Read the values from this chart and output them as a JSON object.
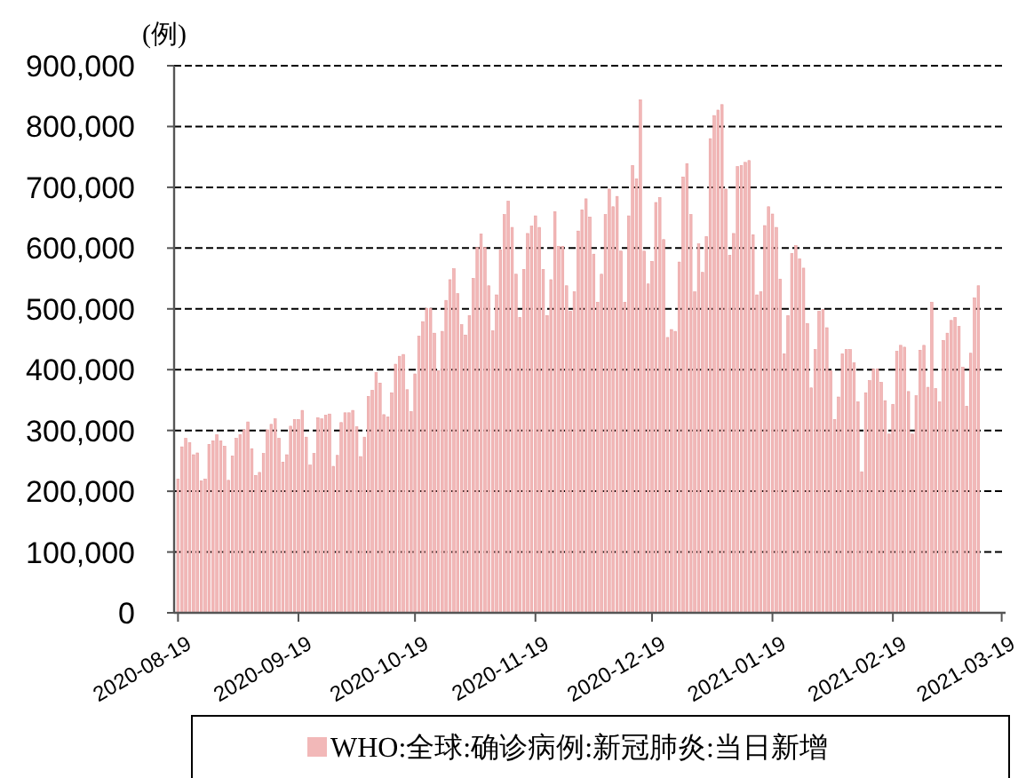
{
  "chart_data": {
    "type": "bar",
    "ylabel": "(例)",
    "x": [
      "2020-08-19",
      "2020-08-20",
      "2020-08-21",
      "2020-08-22",
      "2020-08-23",
      "2020-08-24",
      "2020-08-25",
      "2020-08-26",
      "2020-08-27",
      "2020-08-28",
      "2020-08-29",
      "2020-08-30",
      "2020-08-31",
      "2020-09-01",
      "2020-09-02",
      "2020-09-03",
      "2020-09-04",
      "2020-09-05",
      "2020-09-06",
      "2020-09-07",
      "2020-09-08",
      "2020-09-09",
      "2020-09-10",
      "2020-09-11",
      "2020-09-12",
      "2020-09-13",
      "2020-09-14",
      "2020-09-15",
      "2020-09-16",
      "2020-09-17",
      "2020-09-18",
      "2020-09-19",
      "2020-09-20",
      "2020-09-21",
      "2020-09-22",
      "2020-09-23",
      "2020-09-24",
      "2020-09-25",
      "2020-09-26",
      "2020-09-27",
      "2020-09-28",
      "2020-09-29",
      "2020-09-30",
      "2020-10-01",
      "2020-10-02",
      "2020-10-03",
      "2020-10-04",
      "2020-10-05",
      "2020-10-06",
      "2020-10-07",
      "2020-10-08",
      "2020-10-09",
      "2020-10-10",
      "2020-10-11",
      "2020-10-12",
      "2020-10-13",
      "2020-10-14",
      "2020-10-15",
      "2020-10-16",
      "2020-10-17",
      "2020-10-18",
      "2020-10-19",
      "2020-10-20",
      "2020-10-21",
      "2020-10-22",
      "2020-10-23",
      "2020-10-24",
      "2020-10-25",
      "2020-10-26",
      "2020-10-27",
      "2020-10-28",
      "2020-10-29",
      "2020-10-30",
      "2020-10-31",
      "2020-11-01",
      "2020-11-02",
      "2020-11-03",
      "2020-11-04",
      "2020-11-05",
      "2020-11-06",
      "2020-11-07",
      "2020-11-08",
      "2020-11-09",
      "2020-11-10",
      "2020-11-11",
      "2020-11-12",
      "2020-11-13",
      "2020-11-14",
      "2020-11-15",
      "2020-11-16",
      "2020-11-17",
      "2020-11-18",
      "2020-11-19",
      "2020-11-20",
      "2020-11-21",
      "2020-11-22",
      "2020-11-23",
      "2020-11-24",
      "2020-11-25",
      "2020-11-26",
      "2020-11-27",
      "2020-11-28",
      "2020-11-29",
      "2020-11-30",
      "2020-12-01",
      "2020-12-02",
      "2020-12-03",
      "2020-12-04",
      "2020-12-05",
      "2020-12-06",
      "2020-12-07",
      "2020-12-08",
      "2020-12-09",
      "2020-12-10",
      "2020-12-11",
      "2020-12-12",
      "2020-12-13",
      "2020-12-14",
      "2020-12-15",
      "2020-12-16",
      "2020-12-17",
      "2020-12-18",
      "2020-12-19",
      "2020-12-20",
      "2020-12-21",
      "2020-12-22",
      "2020-12-23",
      "2020-12-24",
      "2020-12-25",
      "2020-12-26",
      "2020-12-27",
      "2020-12-28",
      "2020-12-29",
      "2020-12-30",
      "2020-12-31",
      "2021-01-01",
      "2021-01-02",
      "2021-01-03",
      "2021-01-04",
      "2021-01-05",
      "2021-01-06",
      "2021-01-07",
      "2021-01-08",
      "2021-01-09",
      "2021-01-10",
      "2021-01-11",
      "2021-01-12",
      "2021-01-13",
      "2021-01-14",
      "2021-01-15",
      "2021-01-16",
      "2021-01-17",
      "2021-01-18",
      "2021-01-19",
      "2021-01-20",
      "2021-01-21",
      "2021-01-22",
      "2021-01-23",
      "2021-01-24",
      "2021-01-25",
      "2021-01-26",
      "2021-01-27",
      "2021-01-28",
      "2021-01-29",
      "2021-01-30",
      "2021-01-31",
      "2021-02-01",
      "2021-02-02",
      "2021-02-03",
      "2021-02-04",
      "2021-02-05",
      "2021-02-06",
      "2021-02-07",
      "2021-02-08",
      "2021-02-09",
      "2021-02-10",
      "2021-02-11",
      "2021-02-12",
      "2021-02-13",
      "2021-02-14",
      "2021-02-15",
      "2021-02-16",
      "2021-02-17",
      "2021-02-18",
      "2021-02-19",
      "2021-02-20",
      "2021-02-21",
      "2021-02-22",
      "2021-02-23",
      "2021-02-24",
      "2021-02-25",
      "2021-02-26",
      "2021-02-27",
      "2021-02-28",
      "2021-03-01",
      "2021-03-02",
      "2021-03-03",
      "2021-03-04",
      "2021-03-05",
      "2021-03-06",
      "2021-03-07",
      "2021-03-08",
      "2021-03-09",
      "2021-03-10",
      "2021-03-11",
      "2021-03-12",
      "2021-03-13"
    ],
    "series": [
      {
        "name": "WHO:全球:确诊病例:新冠肺炎:当日新增",
        "color": "#f2b8b8",
        "values": [
          220000,
          273000,
          287000,
          280000,
          260000,
          263000,
          217000,
          220000,
          277000,
          283000,
          293000,
          283000,
          274000,
          218000,
          258000,
          287000,
          293000,
          301000,
          314000,
          270000,
          226000,
          231000,
          262000,
          301000,
          310000,
          319000,
          287000,
          248000,
          260000,
          307000,
          318000,
          318000,
          333000,
          289000,
          243000,
          262000,
          321000,
          319000,
          325000,
          327000,
          241000,
          259000,
          313000,
          329000,
          329000,
          333000,
          306000,
          257000,
          289000,
          356000,
          366000,
          395000,
          378000,
          326000,
          322000,
          362000,
          409000,
          422000,
          425000,
          367000,
          331000,
          393000,
          455000,
          479000,
          501000,
          501000,
          460000,
          398000,
          463000,
          514000,
          548000,
          566000,
          525000,
          474000,
          457000,
          489000,
          550000,
          601000,
          623000,
          601000,
          538000,
          464000,
          523000,
          597000,
          655000,
          677000,
          634000,
          557000,
          486000,
          565000,
          624000,
          636000,
          653000,
          634000,
          565000,
          489000,
          548000,
          660000,
          603000,
          603000,
          538000,
          496000,
          528000,
          628000,
          663000,
          681000,
          651000,
          590000,
          511000,
          557000,
          655000,
          697000,
          668000,
          685000,
          595000,
          511000,
          653000,
          736000,
          714000,
          844000,
          595000,
          541000,
          578000,
          675000,
          683000,
          614000,
          453000,
          466000,
          463000,
          577000,
          717000,
          739000,
          655000,
          528000,
          607000,
          560000,
          619000,
          780000,
          818000,
          827000,
          836000,
          697000,
          588000,
          624000,
          734000,
          736000,
          741000,
          744000,
          622000,
          523000,
          528000,
          637000,
          668000,
          656000,
          634000,
          549000,
          426000,
          489000,
          591000,
          604000,
          582000,
          567000,
          476000,
          370000,
          433000,
          496000,
          499000,
          469000,
          398000,
          318000,
          355000,
          426000,
          433000,
          433000,
          411000,
          347000,
          232000,
          362000,
          382000,
          401000,
          401000,
          379000,
          349000,
          294000,
          343000,
          430000,
          440000,
          437000,
          364000,
          294000,
          357000,
          432000,
          440000,
          371000,
          511000,
          369000,
          347000,
          448000,
          460000,
          481000,
          486000,
          471000,
          404000,
          340000,
          427000,
          518000,
          538000
        ]
      }
    ],
    "xlim": [
      "2020-08-18",
      "2021-03-20"
    ],
    "xticks": [
      "2020-08-19",
      "2020-09-19",
      "2020-10-19",
      "2020-11-19",
      "2020-12-19",
      "2021-01-19",
      "2021-02-19",
      "2021-03-19"
    ],
    "ylim": [
      0,
      900000
    ],
    "yticks": [
      {
        "value": 0,
        "label": "0"
      },
      {
        "value": 100000,
        "label": "100,000"
      },
      {
        "value": 200000,
        "label": "200,000"
      },
      {
        "value": 300000,
        "label": "300,000"
      },
      {
        "value": 400000,
        "label": "400,000"
      },
      {
        "value": 500000,
        "label": "500,000"
      },
      {
        "value": 600000,
        "label": "600,000"
      },
      {
        "value": 700000,
        "label": "700,000"
      },
      {
        "value": 800000,
        "label": "800,000"
      },
      {
        "value": 900000,
        "label": "900,000"
      }
    ],
    "grid": "y",
    "legend": "bottom"
  }
}
